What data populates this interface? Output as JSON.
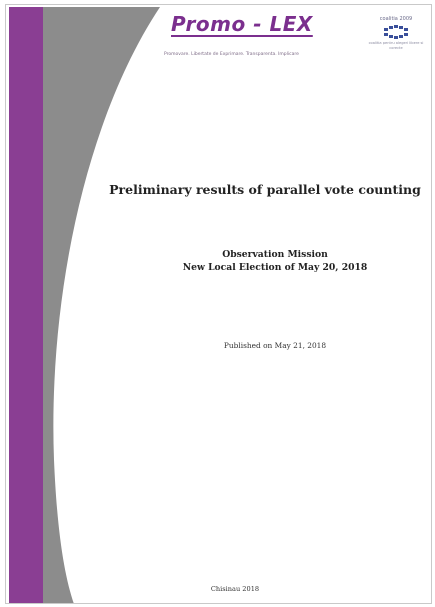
{
  "header": {
    "logo_name": "Promo - LEX",
    "logo_tagline": "Promovare. Libertate de Exprimare. Transparenta. Implicare",
    "coalition_top": "coalitia 2009",
    "coalition_bottom": "coalitia pentru alegeri libere si corecte"
  },
  "document": {
    "title": "Preliminary results of parallel vote counting",
    "mission_line1": "Observation Mission",
    "mission_line2": "New Local Election of May 20, 2018",
    "published": "Published on May 21, 2018",
    "place": "Chisinau 2018"
  },
  "colors": {
    "purple": "#8a3e93",
    "gray": "#8c8c8c",
    "white": "#ffffff"
  }
}
